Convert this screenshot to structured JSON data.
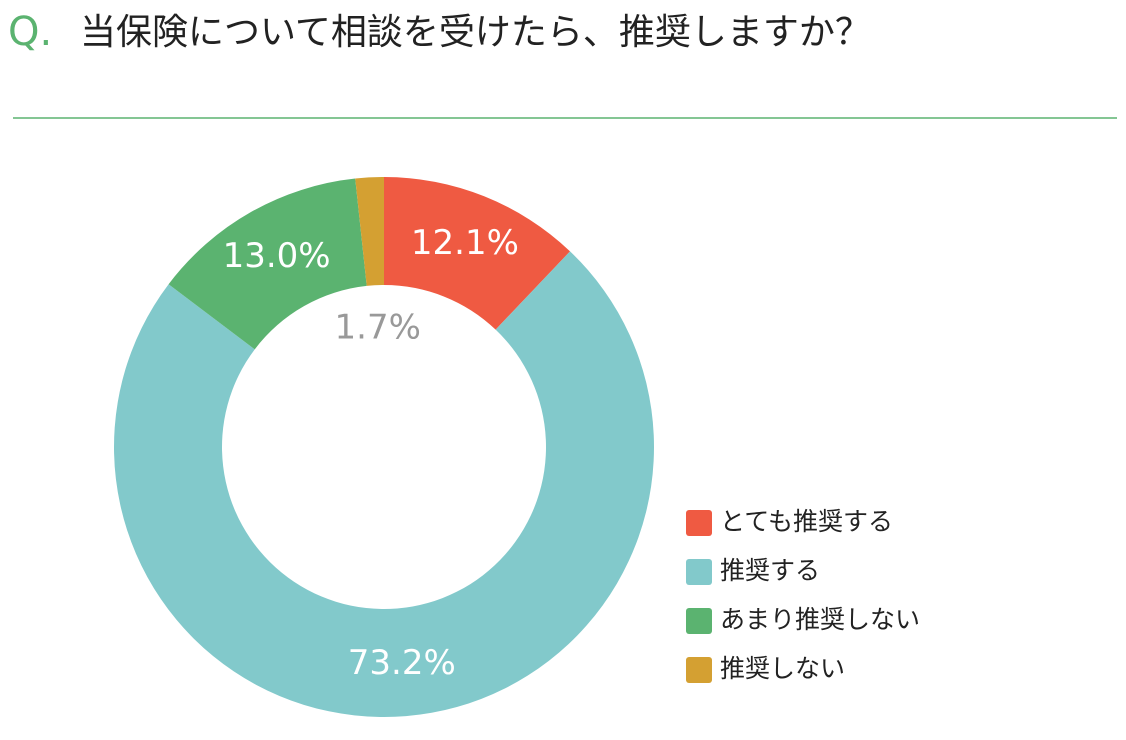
{
  "chart_data": {
    "type": "donut",
    "question_marker": "Q.",
    "title": "当保険について相談を受けたら、推奨しますか？",
    "categories": [
      "とても推奨する",
      "推奨する",
      "あまり推奨しない",
      "推奨しない"
    ],
    "values": [
      12.1,
      73.2,
      13.0,
      1.7
    ],
    "value_labels": [
      "12.1%",
      "73.2%",
      "13.0%",
      "1.7%"
    ],
    "colors": [
      "#ef5a42",
      "#82c9cb",
      "#5bb370",
      "#d4a032"
    ],
    "legend": "lower-right"
  }
}
